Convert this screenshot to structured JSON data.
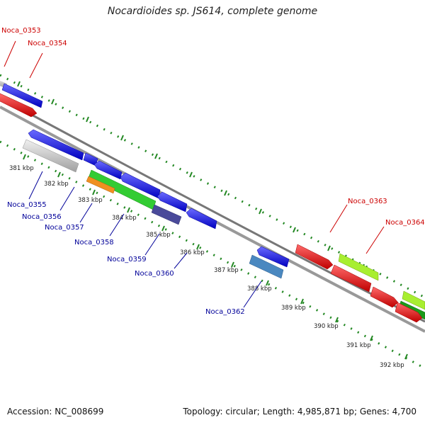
{
  "title": "Nocardioides sp. JS614, complete genome",
  "footer": {
    "accession": "Accession: NC_008699",
    "summary": "Topology: circular; Length: 4,985,871 bp; Genes: 4,700"
  },
  "colors": {
    "forward_label": "#cc0000",
    "reverse_label": "#000099",
    "tick": "#228822",
    "backbone": "#888888"
  },
  "ticks": [
    {
      "label": "381 kbp"
    },
    {
      "label": "382 kbp"
    },
    {
      "label": "383 kbp"
    },
    {
      "label": "384 kbp"
    },
    {
      "label": "385 kbp"
    },
    {
      "label": "386 kbp"
    },
    {
      "label": "387 kbp"
    },
    {
      "label": "388 kbp"
    },
    {
      "label": "389 kbp"
    },
    {
      "label": "390 kbp"
    },
    {
      "label": "391 kbp"
    },
    {
      "label": "392 kbp"
    }
  ],
  "genes_forward": [
    {
      "id": "Noca_0353"
    },
    {
      "id": "Noca_0354"
    },
    {
      "id": "Noca_0363"
    },
    {
      "id": "Noca_0364"
    }
  ],
  "genes_reverse": [
    {
      "id": "Noca_0355"
    },
    {
      "id": "Noca_0356"
    },
    {
      "id": "Noca_0357"
    },
    {
      "id": "Noca_0358"
    },
    {
      "id": "Noca_0359"
    },
    {
      "id": "Noca_0360"
    },
    {
      "id": "Noca_0362"
    }
  ],
  "feature_colors": {
    "blue": "#1010ee",
    "red": "#ee1010",
    "grey": "#c8c8c8",
    "orange": "#f09020",
    "green": "#33cc33",
    "lime": "#a8ee30",
    "darkgreen": "#1a9a1a",
    "slate": "#4a4a9a",
    "steel": "#4a88c0"
  }
}
